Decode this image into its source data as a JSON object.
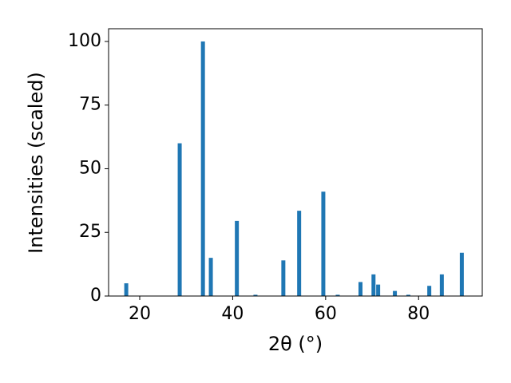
{
  "chart_data": {
    "type": "bar",
    "x_label": "2θ (°)",
    "y_label": "Intensities (scaled)",
    "x": [
      17.1,
      28.6,
      33.6,
      35.3,
      40.9,
      44.9,
      50.9,
      54.3,
      59.5,
      62.6,
      67.5,
      70.3,
      71.3,
      74.9,
      77.8,
      82.3,
      85.0,
      89.3
    ],
    "values": [
      5,
      60,
      100,
      15,
      29.5,
      0.5,
      14,
      33.5,
      41,
      0.5,
      5.5,
      8.5,
      4.5,
      2,
      0.5,
      4,
      8.5,
      17
    ],
    "color": "#1f77b4",
    "xlim": [
      13.3,
      93.7
    ],
    "ylim": [
      0,
      105
    ],
    "xticks": [
      20,
      40,
      60,
      80
    ],
    "yticks": [
      0,
      25,
      50,
      75,
      100
    ],
    "grid": false
  }
}
